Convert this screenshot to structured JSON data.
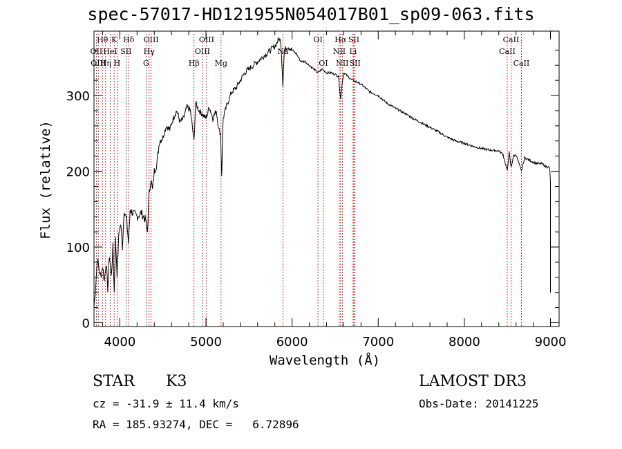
{
  "chart_data": {
    "type": "line",
    "title": "spec-57017-HD121955N054017B01_sp09-063.fits",
    "xlabel": "Wavelength (Å)",
    "ylabel": "Flux (relative)",
    "xlim": [
      3700,
      9100
    ],
    "ylim": [
      -5,
      385
    ],
    "xticks": [
      4000,
      5000,
      6000,
      7000,
      8000,
      9000
    ],
    "yticks": [
      0,
      100,
      200,
      300
    ],
    "series": [
      {
        "name": "flux",
        "x": [
          3700,
          3720,
          3740,
          3760,
          3780,
          3800,
          3820,
          3840,
          3860,
          3880,
          3900,
          3920,
          3935,
          3950,
          3968,
          3990,
          4010,
          4030,
          4050,
          4080,
          4101,
          4120,
          4150,
          4200,
          4250,
          4300,
          4320,
          4340,
          4360,
          4380,
          4400,
          4430,
          4460,
          4500,
          4540,
          4580,
          4620,
          4660,
          4700,
          4740,
          4780,
          4820,
          4861,
          4880,
          4920,
          4960,
          5000,
          5040,
          5080,
          5120,
          5150,
          5170,
          5183,
          5200,
          5250,
          5300,
          5350,
          5400,
          5450,
          5500,
          5550,
          5600,
          5650,
          5700,
          5750,
          5800,
          5850,
          5870,
          5893,
          5910,
          5950,
          6000,
          6050,
          6100,
          6150,
          6200,
          6250,
          6300,
          6350,
          6400,
          6450,
          6500,
          6540,
          6563,
          6580,
          6600,
          6650,
          6700,
          6750,
          6800,
          6900,
          7000,
          7100,
          7200,
          7300,
          7400,
          7500,
          7600,
          7700,
          7800,
          7900,
          8000,
          8100,
          8200,
          8300,
          8400,
          8450,
          8498,
          8520,
          8542,
          8570,
          8600,
          8662,
          8700,
          8750,
          8800,
          8850,
          8900,
          8950,
          8990,
          9000
        ],
        "y": [
          20,
          50,
          85,
          70,
          60,
          75,
          55,
          80,
          45,
          90,
          60,
          100,
          40,
          110,
          65,
          120,
          130,
          100,
          150,
          135,
          105,
          150,
          145,
          140,
          145,
          135,
          120,
          170,
          190,
          175,
          200,
          210,
          240,
          245,
          260,
          255,
          270,
          280,
          265,
          270,
          285,
          280,
          240,
          290,
          280,
          275,
          270,
          285,
          270,
          280,
          255,
          250,
          195,
          270,
          290,
          305,
          310,
          320,
          330,
          335,
          340,
          345,
          350,
          355,
          360,
          365,
          375,
          370,
          315,
          360,
          365,
          360,
          355,
          345,
          345,
          340,
          335,
          330,
          335,
          330,
          330,
          328,
          325,
          295,
          315,
          330,
          325,
          320,
          318,
          315,
          305,
          300,
          290,
          283,
          277,
          270,
          264,
          258,
          252,
          245,
          240,
          237,
          233,
          230,
          228,
          227,
          222,
          200,
          225,
          205,
          220,
          222,
          200,
          218,
          215,
          212,
          210,
          210,
          206,
          205,
          185
        ]
      }
    ],
    "line_labels": [
      {
        "x": 3798,
        "text": "Hθ",
        "row": 0
      },
      {
        "x": 3727,
        "text": "OII",
        "row": 1
      },
      {
        "x": 3750,
        "text": "OIII",
        "row": 2
      },
      {
        "x": 3889,
        "text": "HeI",
        "row": 1
      },
      {
        "x": 3835,
        "text": "Hη",
        "row": 2
      },
      {
        "x": 3934,
        "text": "K",
        "row": 0
      },
      {
        "x": 3968,
        "text": "H",
        "row": 2
      },
      {
        "x": 4072,
        "text": "SII",
        "row": 1
      },
      {
        "x": 4102,
        "text": "Hδ",
        "row": 0
      },
      {
        "x": 4363,
        "text": "OIII",
        "row": 0
      },
      {
        "x": 4340,
        "text": "Hγ",
        "row": 1
      },
      {
        "x": 4305,
        "text": "G",
        "row": 2
      },
      {
        "x": 5007,
        "text": "OIII",
        "row": 0
      },
      {
        "x": 4959,
        "text": "OIII",
        "row": 1
      },
      {
        "x": 4861,
        "text": "Hβ",
        "row": 2
      },
      {
        "x": 5175,
        "text": "Mg",
        "row": 2
      },
      {
        "x": 5893,
        "text": "Na",
        "row": 1
      },
      {
        "x": 6300,
        "text": "OI",
        "row": 0
      },
      {
        "x": 6363,
        "text": "OI",
        "row": 2
      },
      {
        "x": 6563,
        "text": "Hα",
        "row": 0
      },
      {
        "x": 6717,
        "text": "SII",
        "row": 0
      },
      {
        "x": 6548,
        "text": "NII",
        "row": 1
      },
      {
        "x": 6708,
        "text": "Li",
        "row": 1
      },
      {
        "x": 6583,
        "text": "NII",
        "row": 2
      },
      {
        "x": 6731,
        "text": "SII",
        "row": 2
      },
      {
        "x": 8498,
        "text": "CaII",
        "row": 1
      },
      {
        "x": 8542,
        "text": "CaII",
        "row": 0
      },
      {
        "x": 8662,
        "text": "CaII",
        "row": 2
      }
    ],
    "line_marker_color": "#cc0000",
    "curve_color": "#000000"
  },
  "info": {
    "class": "STAR",
    "subclass": "K3",
    "survey": "LAMOST DR3",
    "cz": "cz = -31.9 ± 11.4 km/s",
    "obs_date": "Obs-Date: 20141225",
    "coords": "RA = 185.93274, DEC =   6.72896"
  }
}
